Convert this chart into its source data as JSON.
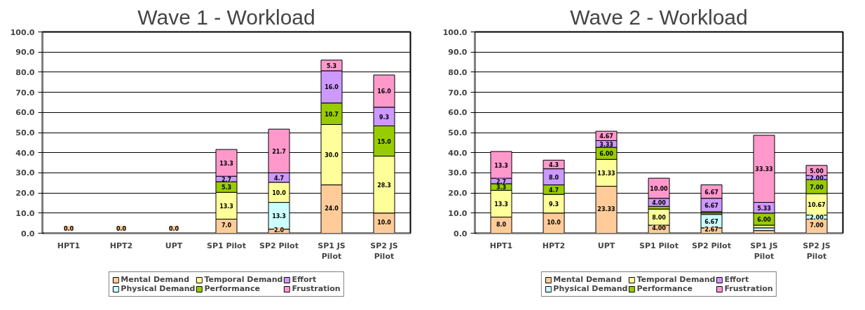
{
  "chart_data": [
    {
      "type": "bar",
      "title": "Wave 1 - Workload",
      "stacked": true,
      "legend": "bottom",
      "grid": "y",
      "categories": [
        "HPT1",
        "HPT2",
        "UPT",
        "SP1 Pilot",
        "SP2 Pilot",
        "SP1 JS Pilot",
        "SP2 JS Pilot"
      ],
      "ylim": [
        0,
        100
      ],
      "yticks": [
        {
          "value": 0,
          "label": "0.0"
        },
        {
          "value": 10,
          "label": "10.0"
        },
        {
          "value": 20,
          "label": "20.0"
        },
        {
          "value": 30,
          "label": "30.0"
        },
        {
          "value": 40,
          "label": "40.0"
        },
        {
          "value": 50,
          "label": "50.0"
        },
        {
          "value": 60,
          "label": "60.0"
        },
        {
          "value": 70,
          "label": "70.0"
        },
        {
          "value": 80,
          "label": "80.0"
        },
        {
          "value": 90,
          "label": "90.0"
        },
        {
          "value": 100,
          "label": "100.0"
        }
      ],
      "series": [
        {
          "name": "Mental Demand",
          "color": "#ffcc99",
          "values": [
            0,
            0,
            0,
            7.0,
            2.0,
            24.0,
            10.0
          ],
          "value_labels": [
            "0.0",
            "0.0",
            "0.0",
            "7.0",
            "2.0",
            "24.0",
            "10.0"
          ]
        },
        {
          "name": "Physical Demand",
          "color": "#ccffff",
          "values": [
            0,
            0,
            0,
            0.0,
            13.3,
            0.0,
            0.0
          ],
          "value_labels": [
            null,
            null,
            null,
            null,
            "13.3",
            null,
            null
          ]
        },
        {
          "name": "Temporal Demand",
          "color": "#ffff99",
          "values": [
            0,
            0,
            0,
            13.3,
            10.0,
            30.0,
            28.3
          ],
          "value_labels": [
            null,
            null,
            null,
            "13.3",
            "10.0",
            "30.0",
            "28.3"
          ]
        },
        {
          "name": "Performance",
          "color": "#99cc00",
          "values": [
            0,
            0,
            0,
            5.3,
            0.0,
            10.7,
            15.0
          ],
          "value_labels": [
            null,
            null,
            null,
            "5.3",
            null,
            "10.7",
            "15.0"
          ]
        },
        {
          "name": "Effort",
          "color": "#cc99ff",
          "values": [
            0,
            0,
            0,
            2.7,
            4.7,
            16.0,
            9.3
          ],
          "value_labels": [
            null,
            null,
            null,
            "2.7",
            "4.7",
            "16.0",
            "9.3"
          ]
        },
        {
          "name": "Frustration",
          "color": "#ff99cc",
          "values": [
            0,
            0,
            0,
            13.3,
            21.7,
            5.3,
            16.0
          ],
          "value_labels": [
            null,
            null,
            null,
            "13.3",
            "21.7",
            "5.3",
            "16.0"
          ]
        }
      ]
    },
    {
      "type": "bar",
      "title": "Wave 2 - Workload",
      "stacked": true,
      "legend": "bottom",
      "grid": "y",
      "categories": [
        "HPT1",
        "HPT2",
        "UPT",
        "SP1 Pilot",
        "SP2 Pilot",
        "SP1 JS Pilot",
        "SP2 JS Pilot"
      ],
      "ylim": [
        0,
        100
      ],
      "yticks": [
        {
          "value": 0,
          "label": "0.0"
        },
        {
          "value": 10,
          "label": "10.0"
        },
        {
          "value": 20,
          "label": "20.0"
        },
        {
          "value": 30,
          "label": "30.0"
        },
        {
          "value": 40,
          "label": "40.0"
        },
        {
          "value": 50,
          "label": "50.0"
        },
        {
          "value": 60,
          "label": "60.0"
        },
        {
          "value": 70,
          "label": "70.0"
        },
        {
          "value": 80,
          "label": "80.0"
        },
        {
          "value": 90,
          "label": "90.0"
        },
        {
          "value": 100,
          "label": "100.0"
        }
      ],
      "series": [
        {
          "name": "Mental Demand",
          "color": "#ffcc99",
          "values": [
            8.0,
            10.0,
            23.33,
            4.0,
            2.67,
            1.33,
            7.0
          ],
          "value_labels": [
            "8.0",
            "10.0",
            "23.33",
            "4.00",
            "2.67",
            null,
            "7.00"
          ]
        },
        {
          "name": "Physical Demand",
          "color": "#ccffff",
          "values": [
            0.0,
            0.0,
            0.0,
            0.0,
            6.67,
            1.33,
            2.0
          ],
          "value_labels": [
            null,
            null,
            null,
            null,
            "6.67",
            null,
            "2.00"
          ]
        },
        {
          "name": "Temporal Demand",
          "color": "#ffff99",
          "values": [
            13.3,
            9.3,
            13.33,
            8.0,
            0.67,
            1.33,
            10.67
          ],
          "value_labels": [
            "13.3",
            "9.3",
            "13.33",
            "8.00",
            null,
            null,
            "10.67"
          ]
        },
        {
          "name": "Performance",
          "color": "#99cc00",
          "values": [
            3.3,
            4.7,
            6.0,
            1.33,
            0.67,
            6.0,
            7.0
          ],
          "value_labels": [
            "3.3",
            "4.7",
            "6.00",
            null,
            null,
            "6.00",
            "7.00"
          ]
        },
        {
          "name": "Effort",
          "color": "#cc99ff",
          "values": [
            2.7,
            8.0,
            3.33,
            4.0,
            6.67,
            5.33,
            2.0
          ],
          "value_labels": [
            "2.7",
            "8.0",
            "3.33",
            "4.00",
            "6.67",
            "5.33",
            "2.00"
          ]
        },
        {
          "name": "Frustration",
          "color": "#ff99cc",
          "values": [
            13.3,
            4.3,
            4.67,
            10.0,
            6.67,
            33.33,
            5.0
          ],
          "value_labels": [
            "13.3",
            "4.3",
            "4.67",
            "10.00",
            "6.67",
            "33.33",
            "5.00"
          ]
        }
      ]
    }
  ]
}
